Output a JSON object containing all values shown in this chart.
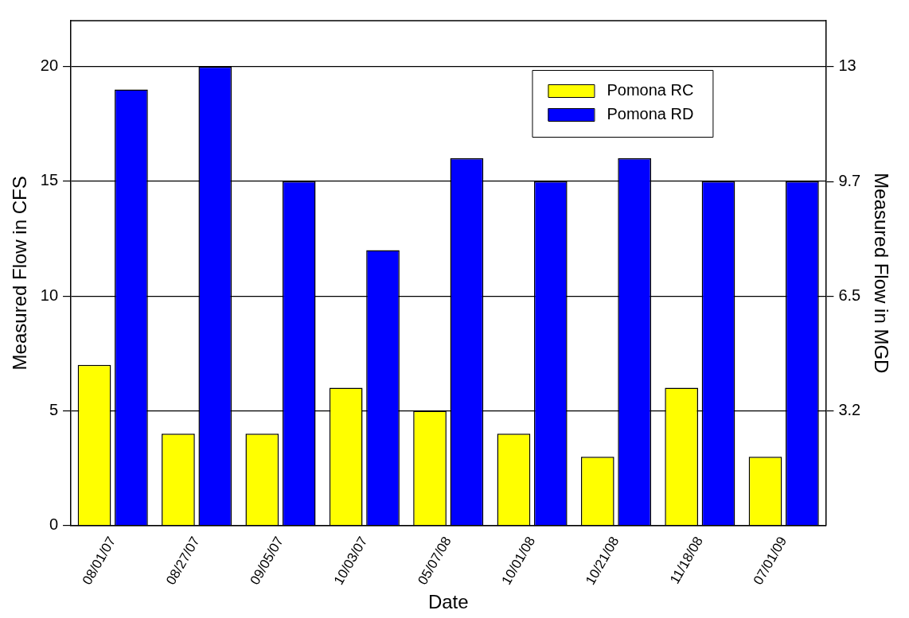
{
  "chart_data": {
    "type": "bar",
    "xlabel": "Date",
    "ylabel": "Measured Flow in CFS",
    "y2label": "Measured Flow in MGD",
    "categories": [
      "08/01/07",
      "08/27/07",
      "09/05/07",
      "10/03/07",
      "05/07/08",
      "10/01/08",
      "10/21/08",
      "11/18/08",
      "07/01/09"
    ],
    "series": [
      {
        "name": "Pomona RC",
        "color": "#ffff00",
        "values": [
          7,
          4,
          4,
          6,
          5,
          4,
          3,
          6,
          3
        ]
      },
      {
        "name": "Pomona RD",
        "color": "#0000ff",
        "values": [
          19,
          20,
          15,
          12,
          16,
          15,
          16,
          15,
          15
        ]
      }
    ],
    "ylim": [
      0,
      22
    ],
    "yticks": [
      0,
      5,
      10,
      15,
      20
    ],
    "y2lim": [
      0,
      14.22
    ],
    "y2ticks": [
      {
        "value": 3.23,
        "label": "3.2"
      },
      {
        "value": 6.46,
        "label": "6.5"
      },
      {
        "value": 9.69,
        "label": "9.7"
      },
      {
        "value": 12.93,
        "label": "13"
      }
    ],
    "grid": "y",
    "legend": "top right"
  }
}
